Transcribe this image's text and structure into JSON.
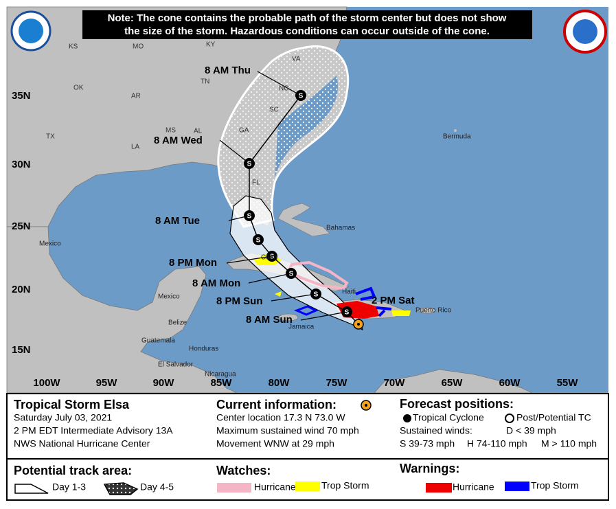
{
  "note": [
    "Note: The cone contains the probable path of the storm center but does not show",
    "the size of the storm. Hazardous conditions can occur outside of the cone."
  ],
  "map": {
    "state_labels": [
      "KS",
      "MO",
      "KY",
      "VA",
      "TN",
      "NC",
      "OK",
      "AR",
      "SC",
      "MS",
      "AL",
      "GA",
      "TX",
      "LA",
      "FL"
    ],
    "place_labels": [
      "Bermuda",
      "Bahamas",
      "Mexico",
      "Cuba",
      "Haiti",
      "Jamaica",
      "Puerto Rico",
      "Mexico",
      "Belize",
      "Guatemala",
      "Honduras",
      "El Salvador",
      "Nicaragua"
    ],
    "lat_labels": [
      "35N",
      "30N",
      "25N",
      "20N",
      "15N"
    ],
    "lon_labels": [
      "100W",
      "95W",
      "90W",
      "85W",
      "80W",
      "75W",
      "70W",
      "65W",
      "60W",
      "55W"
    ],
    "storm_symbol": "S",
    "forecast_labels": [
      "8 AM Thu",
      "8 AM Wed",
      "8 AM Tue",
      "8 PM Mon",
      "8 AM Mon",
      "8 PM Sun",
      "8 AM Sun",
      "2 PM Sat"
    ]
  },
  "info": {
    "storm": {
      "title": "Tropical Storm Elsa",
      "lines": [
        "Saturday July 03, 2021",
        "2 PM EDT Intermediate Advisory 13A",
        "NWS National Hurricane Center"
      ]
    },
    "current": {
      "title": "Current information:",
      "lines": [
        "Center location 17.3 N 73.0 W",
        "Maximum sustained wind 70 mph",
        "Movement WNW at 29 mph"
      ]
    },
    "forecast": {
      "title": "Forecast positions:",
      "tropical_cyclone": "Tropical Cyclone",
      "post_tc": "Post/Potential TC",
      "sustained_winds": "Sustained winds:",
      "d": "D < 39 mph",
      "s": "S 39-73 mph",
      "h": "H 74-110 mph",
      "m": "M > 110 mph"
    }
  },
  "legend": {
    "track": {
      "title": "Potential track area:",
      "day13": "Day 1-3",
      "day45": "Day 4-5"
    },
    "watches": {
      "title": "Watches:",
      "hurricane": "Hurricane",
      "trop_storm": "Trop Storm"
    },
    "warnings": {
      "title": "Warnings:",
      "hurricane": "Hurricane",
      "trop_storm": "Trop Storm"
    }
  }
}
